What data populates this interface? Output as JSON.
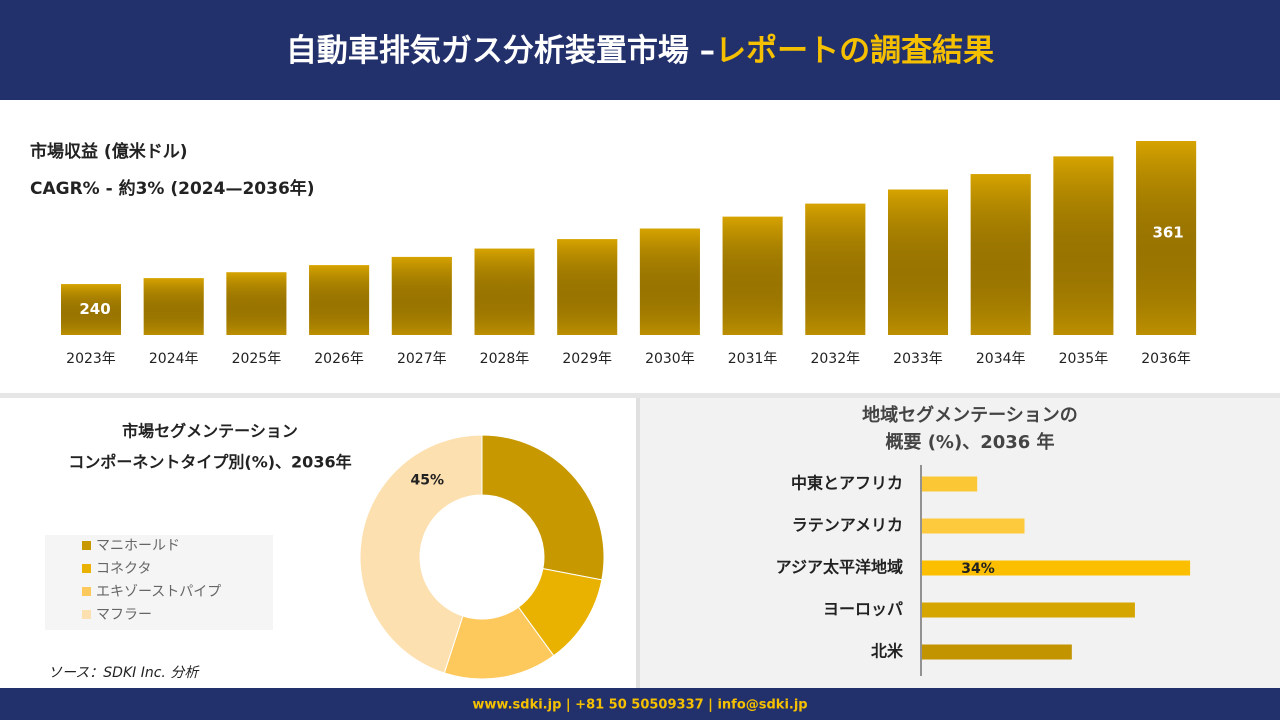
{
  "header": {
    "title": "自動車排気ガス分析装置市場 –",
    "title_highlight": "レポートの調査結果"
  },
  "chart_data": [
    {
      "type": "bar",
      "title": "市場収益 (億米ドル)",
      "subtitle": "CAGR% - 約3% (2024—2036年)",
      "categories": [
        "2023年",
        "2024年",
        "2025年",
        "2026年",
        "2027年",
        "2028年",
        "2029年",
        "2030年",
        "2031年",
        "2032年",
        "2033年",
        "2034年",
        "2035年",
        "2036年"
      ],
      "values": [
        240,
        245,
        250,
        256,
        263,
        270,
        278,
        287,
        297,
        308,
        320,
        333,
        348,
        361
      ],
      "value_labels": [
        "240",
        null,
        null,
        null,
        null,
        null,
        null,
        null,
        null,
        null,
        null,
        null,
        null,
        "361"
      ],
      "color": "#d6a300",
      "ylim": [
        197,
        375
      ]
    },
    {
      "type": "pie",
      "title": "市場セグメンテーション",
      "subtitle": "コンポーネントタイプ別(%)、2036年",
      "categories": [
        "マニホールド",
        "コネクタ",
        "エキゾーストパイプ",
        "マフラー"
      ],
      "values": [
        28,
        12,
        15,
        45
      ],
      "value_labels": [
        null,
        null,
        null,
        "45%"
      ],
      "colors": [
        "#c79800",
        "#e9b200",
        "#fdc95c",
        "#fde0b0"
      ]
    },
    {
      "type": "hbar",
      "title": "地域セグメンテーションの",
      "subtitle": "概要 (%)、2036 年",
      "categories": [
        "中東とアフリカ",
        "ラテンアメリカ",
        "アジア太平洋地域",
        "ヨーロッパ",
        "北米"
      ],
      "values": [
        7,
        13,
        34,
        27,
        19
      ],
      "value_labels": [
        null,
        null,
        "34%",
        null,
        null
      ],
      "colors": [
        "#fcc734",
        "#fdca3e",
        "#fbbf00",
        "#d6a600",
        "#c29400"
      ],
      "xlim": [
        0,
        35
      ]
    }
  ],
  "source": "ソース：SDKI Inc. 分析",
  "footer": "www.sdki.jp | +81 50 50509337 | info@sdki.jp"
}
